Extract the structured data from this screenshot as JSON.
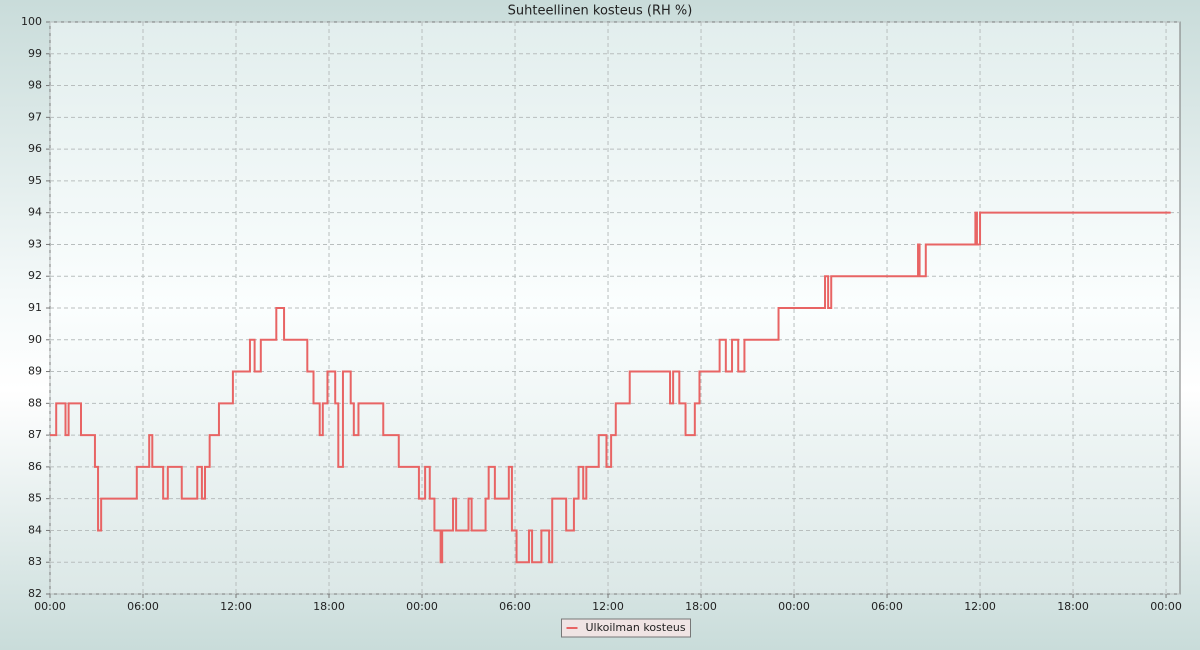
{
  "chart_data": {
    "type": "line",
    "title": "Suhteellinen kosteus (RH %)",
    "x": [
      0,
      0.4,
      0.4,
      1.0,
      1.0,
      1.2,
      1.2,
      2.0,
      2.0,
      2.9,
      2.9,
      3.1,
      3.1,
      3.3,
      3.3,
      5.6,
      5.6,
      6.4,
      6.4,
      6.6,
      6.6,
      7.3,
      7.3,
      7.6,
      7.6,
      8.5,
      8.5,
      9.5,
      9.5,
      9.8,
      9.8,
      10.0,
      10.0,
      10.3,
      10.3,
      10.9,
      10.9,
      11.8,
      11.8,
      12.9,
      12.9,
      13.2,
      13.2,
      13.6,
      13.6,
      14.6,
      14.6,
      15.1,
      15.1,
      16.6,
      16.6,
      17.0,
      17.0,
      17.4,
      17.4,
      17.6,
      17.6,
      17.9,
      17.9,
      18.4,
      18.4,
      18.6,
      18.6,
      18.9,
      18.9,
      19.4,
      19.4,
      19.6,
      19.6,
      19.9,
      19.9,
      21.5,
      21.5,
      22.5,
      22.5,
      23.8,
      23.8,
      24.2,
      24.2,
      24.5,
      24.5,
      24.8,
      24.8,
      25.2,
      25.2,
      25.3,
      25.3,
      26.0,
      26.0,
      26.2,
      26.2,
      27.0,
      27.0,
      27.2,
      27.2,
      28.1,
      28.1,
      28.3,
      28.3,
      28.7,
      28.7,
      29.6,
      29.6,
      29.8,
      29.8,
      30.1,
      30.1,
      30.9,
      30.9,
      31.1,
      31.1,
      31.7,
      31.7,
      32.2,
      32.2,
      32.4,
      32.4,
      33.3,
      33.3,
      33.8,
      33.8,
      34.1,
      34.1,
      34.4,
      34.4,
      34.6,
      34.6,
      35.4,
      35.4,
      35.9,
      35.9,
      36.2,
      36.2,
      36.5,
      36.5,
      37.4,
      37.4,
      40.0,
      40.0,
      40.2,
      40.2,
      40.6,
      40.6,
      41.0,
      41.0,
      41.6,
      41.6,
      41.9,
      41.9,
      43.2,
      43.2,
      43.6,
      43.6,
      44.0,
      44.0,
      44.4,
      44.4,
      44.8,
      44.8,
      47.0,
      47.0,
      50.0,
      50.0,
      50.2,
      50.2,
      50.4,
      50.4,
      56.0,
      56.0,
      56.1,
      56.1,
      56.5,
      56.5,
      59.7,
      59.7,
      59.8,
      59.8,
      60.0,
      60.0,
      72.3
    ],
    "series": [
      {
        "name": "Ulkoilman kosteus",
        "color": "#e86464",
        "values": [
          87,
          87,
          88,
          88,
          87,
          87,
          88,
          88,
          87,
          87,
          86,
          86,
          84,
          84,
          85,
          85,
          86,
          86,
          87,
          87,
          86,
          86,
          85,
          85,
          86,
          86,
          85,
          85,
          86,
          86,
          85,
          85,
          86,
          86,
          87,
          87,
          88,
          88,
          89,
          89,
          90,
          90,
          89,
          89,
          90,
          90,
          91,
          91,
          90,
          90,
          89,
          89,
          88,
          88,
          87,
          87,
          88,
          88,
          89,
          89,
          88,
          88,
          86,
          86,
          89,
          89,
          88,
          88,
          87,
          87,
          88,
          88,
          87,
          87,
          86,
          86,
          85,
          85,
          86,
          86,
          85,
          85,
          84,
          84,
          83,
          83,
          84,
          84,
          85,
          85,
          84,
          84,
          85,
          85,
          84,
          84,
          85,
          85,
          86,
          86,
          85,
          85,
          86,
          86,
          84,
          84,
          83,
          83,
          84,
          84,
          83,
          83,
          84,
          84,
          83,
          83,
          85,
          85,
          84,
          84,
          85,
          85,
          86,
          86,
          85,
          85,
          86,
          86,
          87,
          87,
          86,
          86,
          87,
          87,
          88,
          88,
          89,
          89,
          88,
          88,
          89,
          89,
          88,
          88,
          87,
          87,
          88,
          88,
          89,
          89,
          90,
          90,
          89,
          89,
          90,
          90,
          89,
          89,
          90,
          90,
          91,
          91,
          92,
          92,
          91,
          91,
          92,
          92,
          93,
          93,
          92,
          92,
          93,
          93,
          94,
          94,
          93,
          93,
          94,
          94
        ]
      }
    ],
    "xlim": [
      0,
      72.9
    ],
    "xticks": [
      {
        "value": 0,
        "label": "00:00"
      },
      {
        "value": 6,
        "label": "06:00"
      },
      {
        "value": 12,
        "label": "12:00"
      },
      {
        "value": 18,
        "label": "18:00"
      },
      {
        "value": 24,
        "label": "00:00"
      },
      {
        "value": 30,
        "label": "06:00"
      },
      {
        "value": 36,
        "label": "12:00"
      },
      {
        "value": 42,
        "label": "18:00"
      },
      {
        "value": 48,
        "label": "00:00"
      },
      {
        "value": 54,
        "label": "06:00"
      },
      {
        "value": 60,
        "label": "12:00"
      },
      {
        "value": 66,
        "label": "18:00"
      },
      {
        "value": 72,
        "label": "00:00"
      }
    ],
    "ylim": [
      82,
      100
    ],
    "yticks": [
      82,
      83,
      84,
      85,
      86,
      87,
      88,
      89,
      90,
      91,
      92,
      93,
      94,
      95,
      96,
      97,
      98,
      99,
      100
    ],
    "grid": true,
    "legend": "bottom"
  }
}
